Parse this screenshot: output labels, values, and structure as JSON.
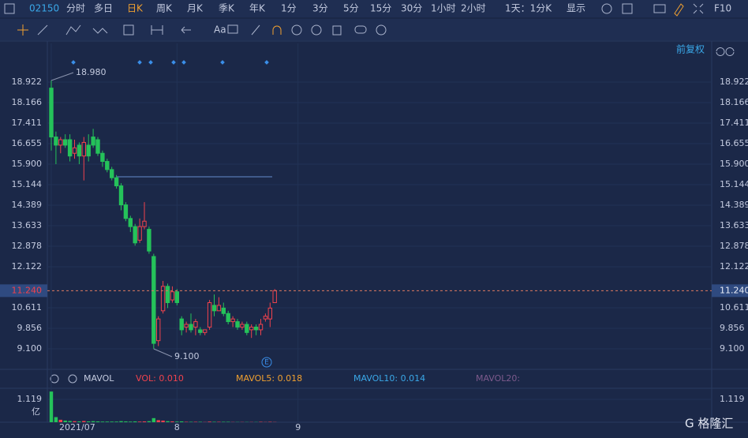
{
  "toolbar": {
    "code": "02150",
    "periods": [
      "分时",
      "多日",
      "日K",
      "周K",
      "月K",
      "季K",
      "年K",
      "1分",
      "3分",
      "5分",
      "15分",
      "30分",
      "1小时",
      "2小时",
      "1天：1分K",
      "显示"
    ],
    "active": "日K",
    "f10": "F10",
    "text_tool": "Aa",
    "adjust": "前复权"
  },
  "chart_data": {
    "type": "candlestick",
    "categories": [
      "2021/07",
      null,
      null,
      null,
      null,
      null,
      null,
      null,
      null,
      null,
      null,
      null,
      null,
      null,
      null,
      null,
      null,
      null,
      null,
      null,
      null,
      null,
      null,
      null,
      null,
      null,
      null,
      "8",
      null,
      null,
      null,
      null,
      null,
      null,
      null,
      null,
      null,
      null,
      null,
      null,
      null,
      null,
      null,
      null,
      null,
      null,
      null,
      null,
      null,
      null,
      null,
      null,
      null,
      "9"
    ],
    "open": [
      18.7,
      16.9,
      16.6,
      16.8,
      16.8,
      16.3,
      16.6,
      16.2,
      16.6,
      16.9,
      16.8,
      16.3,
      16.0,
      15.7,
      15.4,
      15.1,
      14.4,
      13.9,
      13.6,
      13.1,
      13.6,
      13.5,
      12.5,
      9.4,
      10.5,
      11.4,
      10.9,
      11.2,
      10.2,
      9.9,
      10.0,
      9.9,
      9.8,
      9.7,
      9.9,
      10.7,
      10.5,
      10.6,
      10.4,
      10.1,
      10.1,
      9.9,
      10.0,
      9.8,
      9.9,
      9.8,
      10.2,
      10.2,
      10.8,
      null,
      null,
      null,
      null,
      null
    ],
    "high": [
      18.98,
      17.1,
      16.9,
      17.0,
      17.0,
      16.8,
      16.7,
      16.9,
      17.0,
      17.2,
      16.9,
      16.4,
      16.1,
      15.8,
      15.5,
      15.2,
      14.5,
      14.0,
      13.7,
      13.9,
      14.5,
      13.6,
      12.6,
      10.3,
      11.6,
      11.5,
      11.4,
      11.3,
      10.3,
      10.1,
      10.4,
      10.2,
      9.9,
      9.8,
      10.9,
      11.1,
      11.0,
      10.8,
      10.5,
      10.3,
      10.2,
      10.1,
      10.1,
      10.0,
      10.0,
      10.2,
      10.4,
      10.8,
      11.3,
      null,
      null,
      null,
      null,
      null
    ],
    "low": [
      16.4,
      15.9,
      16.3,
      16.5,
      16.0,
      16.1,
      15.9,
      15.3,
      16.0,
      16.5,
      16.2,
      15.8,
      15.6,
      15.3,
      15.0,
      14.2,
      13.8,
      13.4,
      12.9,
      13.0,
      13.5,
      12.6,
      9.1,
      9.2,
      10.4,
      10.6,
      10.8,
      10.7,
      9.6,
      9.7,
      9.7,
      9.6,
      9.6,
      9.6,
      9.8,
      10.3,
      10.5,
      10.3,
      10.0,
      9.9,
      9.8,
      9.8,
      9.6,
      9.5,
      9.6,
      9.6,
      10.1,
      9.9,
      10.8,
      null,
      null,
      null,
      null,
      null
    ],
    "close": [
      16.9,
      16.6,
      16.8,
      16.6,
      16.2,
      16.5,
      16.2,
      16.7,
      16.2,
      16.6,
      16.3,
      16.0,
      15.7,
      15.4,
      15.1,
      14.4,
      13.9,
      13.6,
      13.0,
      13.6,
      13.8,
      12.7,
      9.3,
      10.2,
      11.4,
      10.8,
      11.2,
      10.8,
      9.8,
      10.0,
      9.8,
      10.1,
      9.7,
      9.8,
      10.8,
      10.5,
      10.7,
      10.4,
      10.1,
      10.2,
      9.9,
      10.0,
      9.7,
      9.9,
      9.8,
      10.0,
      10.3,
      10.6,
      11.24,
      null,
      null,
      null,
      null,
      null
    ],
    "up_color": "#f0424d",
    "down_color": "#25c25a",
    "ylim": [
      8.344,
      20.346
    ],
    "yticks": [
      {
        "value": 18.922,
        "label": "18.922"
      },
      {
        "value": 18.166,
        "label": "18.166"
      },
      {
        "value": 17.411,
        "label": "17.411"
      },
      {
        "value": 16.655,
        "label": "16.655"
      },
      {
        "value": 15.9,
        "label": "15.900"
      },
      {
        "value": 15.144,
        "label": "15.144"
      },
      {
        "value": 14.389,
        "label": "14.389"
      },
      {
        "value": 13.633,
        "label": "13.633"
      },
      {
        "value": 12.878,
        "label": "12.878"
      },
      {
        "value": 12.122,
        "label": "12.122"
      },
      {
        "value": 10.611,
        "label": "10.611"
      },
      {
        "value": 9.856,
        "label": "9.856"
      },
      {
        "value": 9.1,
        "label": "9.100"
      }
    ],
    "max_label": {
      "value": 18.98,
      "label": "18.980"
    },
    "min_label": {
      "value": 9.1,
      "label": "9.100"
    },
    "last_price": {
      "value": 11.24,
      "label": "11.240"
    },
    "drawn_level": 15.435,
    "event_marker": "E",
    "volume": {
      "name": "MAVOL",
      "values": [
        1.5,
        0.25,
        0.12,
        0.08,
        0.06,
        0.05,
        0.04,
        0.06,
        0.04,
        0.05,
        0.04,
        0.03,
        0.03,
        0.03,
        0.03,
        0.05,
        0.04,
        0.03,
        0.04,
        0.03,
        0.04,
        0.05,
        0.2,
        0.1,
        0.08,
        0.05,
        0.04,
        0.03,
        0.04,
        0.02,
        0.02,
        0.02,
        0.02,
        0.01,
        0.03,
        0.02,
        0.02,
        0.02,
        0.02,
        0.01,
        0.01,
        0.01,
        0.01,
        0.01,
        0.01,
        0.02,
        0.01,
        0.02,
        0.01,
        null,
        null,
        null,
        null,
        null
      ],
      "ylim": [
        0,
        1.659
      ],
      "yticks": [
        1.119
      ],
      "unit": "亿",
      "indicators": [
        {
          "text": "VOL: 0.010",
          "color": "#f0424d"
        },
        {
          "text": "MAVOL5: 0.018",
          "color": "#f0a030"
        },
        {
          "text": "MAVOL10: 0.014",
          "color": "#3aa8e8"
        },
        {
          "text": "MAVOL20:",
          "color": "#7d5a8c"
        }
      ]
    }
  }
}
